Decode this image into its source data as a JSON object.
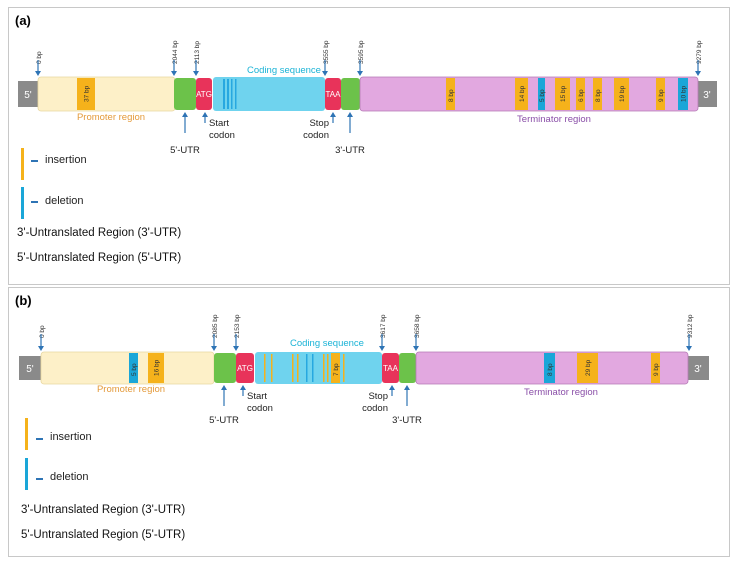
{
  "panels": [
    {
      "label": "(a)",
      "bp_markers": [
        {
          "label": "0 bp",
          "value": 0
        },
        {
          "label": "2044 bp",
          "value": 2044
        },
        {
          "label": "2113 bp",
          "value": 2113
        },
        {
          "label": "3555 bp",
          "value": 3555
        },
        {
          "label": "3595 bp",
          "value": 3595
        },
        {
          "label": "9279 bp",
          "value": 9279
        }
      ],
      "end5": "5'",
      "end3": "3'",
      "region_labels": {
        "promoter": "Promoter region",
        "coding": "Coding sequence",
        "terminator": "Terminator region",
        "start_codon_box": "ATG",
        "stop_codon_box": "TAA"
      },
      "annotations": {
        "utr5": "5'-UTR",
        "start": [
          "Start",
          "codon"
        ],
        "stop": [
          "Stop",
          "codon"
        ],
        "utr3": "3'-UTR"
      },
      "variants": [
        {
          "region": "promoter",
          "type": "insertion",
          "label": "37 bp"
        },
        {
          "region": "terminator",
          "type": "insertion",
          "label": "8 bp"
        },
        {
          "region": "terminator",
          "type": "insertion",
          "label": "14 bp"
        },
        {
          "region": "terminator",
          "type": "deletion",
          "label": "5 bp"
        },
        {
          "region": "terminator",
          "type": "insertion",
          "label": "15 bp"
        },
        {
          "region": "terminator",
          "type": "insertion",
          "label": "6 bp"
        },
        {
          "region": "terminator",
          "type": "insertion",
          "label": "8 bp"
        },
        {
          "region": "terminator",
          "type": "insertion",
          "label": "19 bp"
        },
        {
          "region": "terminator",
          "type": "insertion",
          "label": "9 bp"
        },
        {
          "region": "terminator",
          "type": "deletion",
          "label": "10 bp"
        }
      ],
      "legend": {
        "insertion": "insertion",
        "deletion": "deletion"
      },
      "utr_definitions": [
        "3'-Untranslated Region (3'-UTR)",
        "5'-Untranslated Region (5'-UTR)"
      ]
    },
    {
      "label": "(b)",
      "bp_markers": [
        {
          "label": "0 bp",
          "value": 0
        },
        {
          "label": "2085 bp",
          "value": 2085
        },
        {
          "label": "2153 bp",
          "value": 2153
        },
        {
          "label": "3617 bp",
          "value": 3617
        },
        {
          "label": "3658 bp",
          "value": 3658
        },
        {
          "label": "9312 bp",
          "value": 9312
        }
      ],
      "end5": "5'",
      "end3": "3'",
      "region_labels": {
        "promoter": "Promoter region",
        "coding": "Coding sequence",
        "terminator": "Terminator region",
        "start_codon_box": "ATG",
        "stop_codon_box": "TAA"
      },
      "annotations": {
        "utr5": "5'-UTR",
        "start": [
          "Start",
          "codon"
        ],
        "stop": [
          "Stop",
          "codon"
        ],
        "utr3": "3'-UTR"
      },
      "variants": [
        {
          "region": "promoter",
          "type": "deletion",
          "label": "5 bp"
        },
        {
          "region": "promoter",
          "type": "insertion",
          "label": "16 bp"
        },
        {
          "region": "coding",
          "type": "insertion",
          "label": "7 bp"
        },
        {
          "region": "terminator",
          "type": "deletion",
          "label": "8 bp"
        },
        {
          "region": "terminator",
          "type": "insertion",
          "label": "29 bp"
        },
        {
          "region": "terminator",
          "type": "insertion",
          "label": "9 bp"
        }
      ],
      "legend": {
        "insertion": "insertion",
        "deletion": "deletion"
      },
      "utr_definitions": [
        "3'-Untranslated Region (3'-UTR)",
        "5'-Untranslated Region (5'-UTR)"
      ]
    }
  ],
  "colors": {
    "promoter": "#fdf0c8",
    "coding": "#6fd3ee",
    "terminator": "#e2a8e0",
    "utr": "#6cc24a",
    "codon": "#e8335a",
    "end": "#8a8a8a",
    "insertion": "#f5b21b",
    "deletion": "#1aa6d8",
    "arrow": "#2e74b5",
    "promoter_text": "#e49a3a",
    "coding_text": "#1ab3d6",
    "terminator_text": "#8a4fa8"
  }
}
